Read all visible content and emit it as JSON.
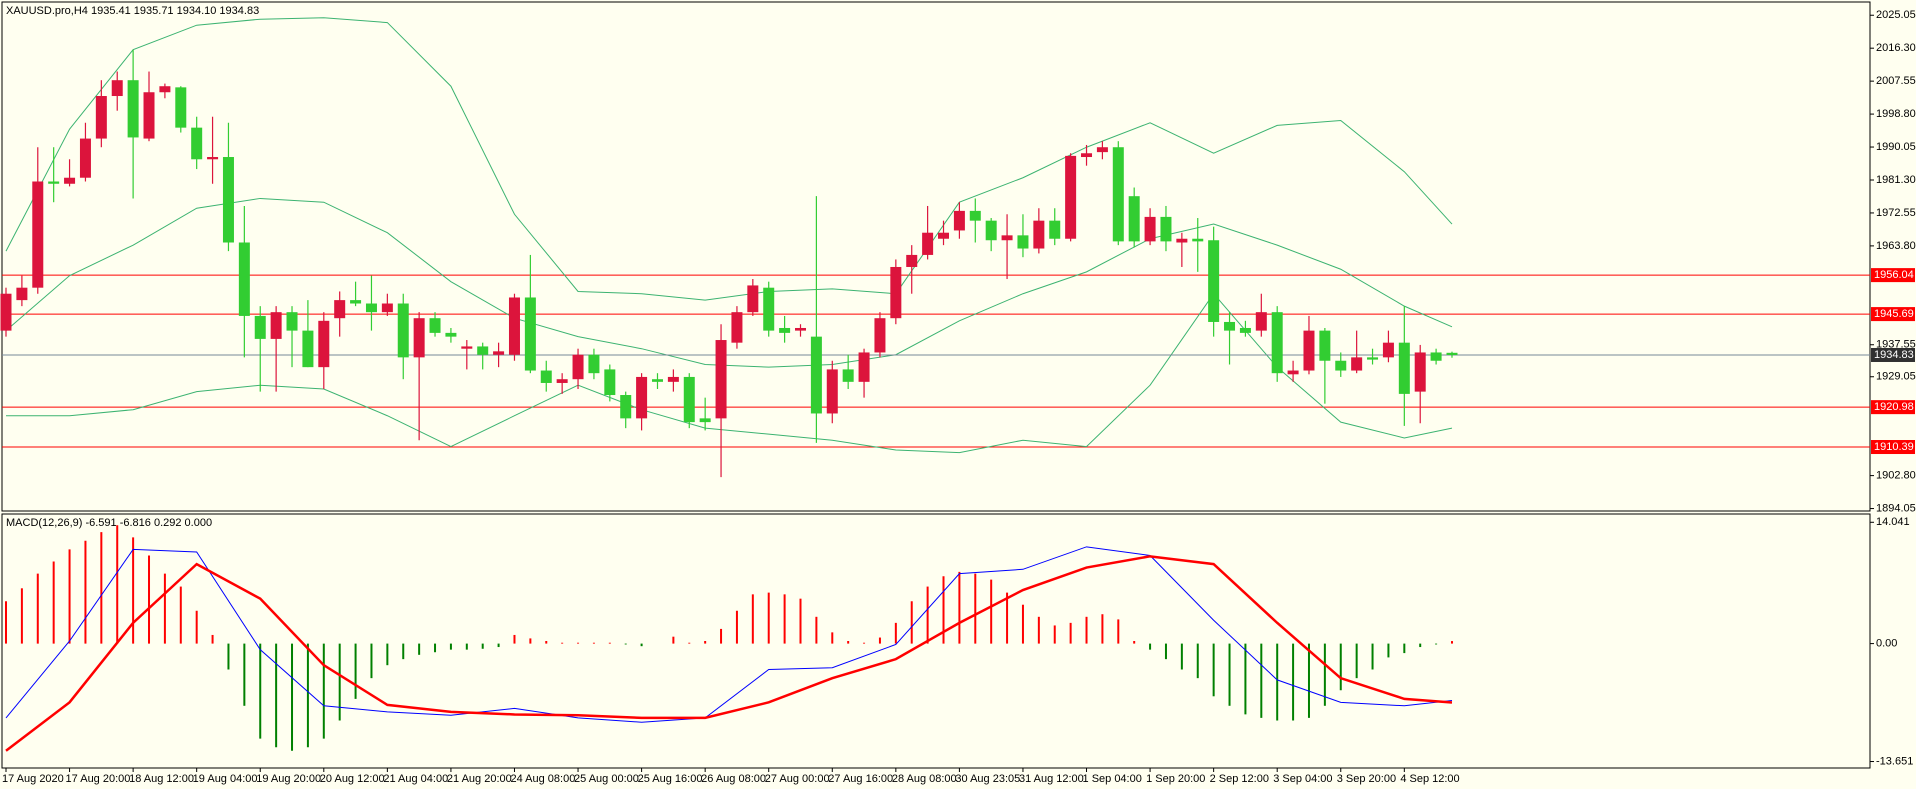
{
  "chart_data": [
    {
      "type": "candlestick",
      "title": "XAUUSD.pro,H4  1935.41 1935.71 1934.10 1934.83",
      "categories": [
        "17 Aug 2020",
        null,
        null,
        null,
        "17 Aug 20:00",
        null,
        null,
        null,
        "18 Aug 12:00",
        null,
        null,
        null,
        "19 Aug 04:00",
        null,
        null,
        null,
        "19 Aug 20:00",
        null,
        null,
        null,
        "20 Aug 12:00",
        null,
        null,
        null,
        "21 Aug 04:00",
        null,
        null,
        null,
        "21 Aug 20:00",
        null,
        null,
        null,
        "24 Aug 08:00",
        null,
        null,
        null,
        "25 Aug 00:00",
        null,
        null,
        null,
        "25 Aug 16:00",
        null,
        null,
        null,
        "26 Aug 08:00",
        null,
        null,
        null,
        "27 Aug 00:00",
        null,
        null,
        null,
        "27 Aug 16:00",
        null,
        null,
        null,
        "28 Aug 08:00",
        null,
        null,
        null,
        "30 Aug 23:05",
        null,
        null,
        null,
        "31 Aug 12:00",
        null,
        null,
        null,
        "1 Sep 04:00",
        null,
        null,
        null,
        "1 Sep 20:00",
        null,
        null,
        null,
        "2 Sep 12:00",
        null,
        null,
        null,
        "3 Sep 04:00",
        null,
        null,
        null,
        "3 Sep 20:00",
        null,
        null,
        null,
        "4 Sep 12:00",
        null,
        null,
        null
      ],
      "open": [
        1941.3,
        1949.4,
        1952.7,
        1980.9,
        1980.3,
        1981.9,
        1992.3,
        2003.6,
        2007.8,
        1992.3,
        2004.6,
        2005.9,
        1995.2,
        1986.8,
        1987.4,
        1964.7,
        1945.2,
        1939.1,
        1946.2,
        1941.3,
        1931.6,
        1944.6,
        1949.4,
        1948.5,
        1946.2,
        1948.5,
        1934.2,
        1944.6,
        1940.7,
        1936.5,
        1937.1,
        1934.9,
        1934.9,
        1950.1,
        1930.7,
        1927.4,
        1928.4,
        1934.9,
        1931.0,
        1924.2,
        1918.0,
        1928.4,
        1927.7,
        1929.0,
        1918.0,
        1918.0,
        1938.1,
        1946.2,
        1952.7,
        1942.0,
        1941.3,
        1939.7,
        1919.3,
        1931.0,
        1927.7,
        1935.5,
        1944.6,
        1958.2,
        1961.4,
        1965.7,
        1967.9,
        1973.1,
        1970.5,
        1965.3,
        1966.6,
        1963.1,
        1970.5,
        1965.7,
        1987.4,
        1988.7,
        1990.0,
        1977.0,
        1965.0,
        1971.5,
        1964.7,
        1965.7,
        1965.3,
        1943.6,
        1942.0,
        1941.3,
        1946.2,
        1929.7,
        1930.7,
        1941.3,
        1933.3,
        1930.7,
        1934.2,
        1934.2,
        1938.1,
        1925.1,
        1935.5,
        1935.41
      ],
      "high": [
        1952.7,
        1955.9,
        1990.0,
        1990.0,
        1986.8,
        1996.5,
        2007.8,
        2010.1,
        2015.9,
        2010.1,
        2006.9,
        2006.2,
        1998.1,
        1998.1,
        1996.5,
        1974.4,
        1947.8,
        1947.8,
        1947.8,
        1949.4,
        1946.2,
        1951.7,
        1954.3,
        1955.9,
        1951.1,
        1951.1,
        1946.2,
        1946.2,
        1942.0,
        1938.8,
        1938.1,
        1938.1,
        1951.1,
        1961.4,
        1933.3,
        1930.0,
        1936.5,
        1936.5,
        1932.3,
        1925.1,
        1930.0,
        1930.0,
        1931.0,
        1930.0,
        1923.5,
        1943.0,
        1947.8,
        1955.0,
        1954.3,
        1945.2,
        1943.0,
        1977.0,
        1933.3,
        1934.9,
        1936.5,
        1946.2,
        1960.2,
        1964.0,
        1974.4,
        1970.5,
        1975.4,
        1976.4,
        1971.2,
        1972.2,
        1972.2,
        1973.8,
        1973.8,
        1988.4,
        1990.6,
        1991.6,
        1991.6,
        1979.3,
        1973.8,
        1974.4,
        1967.3,
        1971.2,
        1968.9,
        1946.2,
        1943.9,
        1951.1,
        1947.8,
        1933.3,
        1945.2,
        1942.0,
        1935.5,
        1941.3,
        1936.5,
        1941.3,
        1947.8,
        1937.5,
        1936.5,
        1935.71
      ],
      "low": [
        1939.7,
        1947.8,
        1951.1,
        1975.4,
        1979.6,
        1980.9,
        1990.0,
        1999.7,
        1976.4,
        1991.6,
        2003.0,
        1993.9,
        1984.2,
        1980.3,
        1962.4,
        1934.2,
        1925.1,
        1925.1,
        1931.6,
        1931.6,
        1925.8,
        1939.7,
        1947.8,
        1941.3,
        1945.2,
        1928.4,
        1912.2,
        1939.7,
        1938.1,
        1931.0,
        1931.0,
        1931.6,
        1933.3,
        1930.0,
        1925.1,
        1924.5,
        1925.8,
        1928.4,
        1922.5,
        1915.4,
        1914.8,
        1925.8,
        1925.1,
        1915.4,
        1914.8,
        1902.4,
        1936.5,
        1945.2,
        1939.7,
        1938.1,
        1939.7,
        1911.5,
        1916.7,
        1925.8,
        1923.5,
        1934.2,
        1943.0,
        1951.1,
        1960.2,
        1964.0,
        1965.7,
        1964.7,
        1962.4,
        1955.0,
        1960.8,
        1961.8,
        1964.0,
        1965.0,
        1985.1,
        1986.8,
        1964.0,
        1963.4,
        1964.0,
        1962.4,
        1958.2,
        1956.9,
        1939.7,
        1932.3,
        1939.7,
        1939.7,
        1927.7,
        1927.7,
        1929.7,
        1921.9,
        1929.0,
        1930.0,
        1932.3,
        1932.9,
        1916.0,
        1916.7,
        1932.3,
        1934.1
      ],
      "close": [
        1951.1,
        1952.7,
        1980.9,
        1980.3,
        1981.9,
        1992.3,
        2003.6,
        2007.8,
        1992.6,
        2004.6,
        2006.2,
        1995.2,
        1986.8,
        1987.4,
        1964.7,
        1945.2,
        1939.1,
        1946.2,
        1941.3,
        1931.6,
        1943.9,
        1949.4,
        1948.5,
        1946.2,
        1948.5,
        1934.2,
        1944.6,
        1940.7,
        1939.7,
        1937.1,
        1934.9,
        1935.8,
        1950.1,
        1930.7,
        1927.4,
        1928.4,
        1934.9,
        1930.0,
        1924.2,
        1918.0,
        1929.0,
        1927.7,
        1929.0,
        1917.0,
        1917.0,
        1938.8,
        1946.2,
        1953.3,
        1941.3,
        1940.7,
        1942.0,
        1919.3,
        1931.0,
        1927.7,
        1935.5,
        1944.6,
        1958.2,
        1961.4,
        1967.3,
        1967.3,
        1973.1,
        1970.5,
        1965.3,
        1966.6,
        1963.1,
        1970.5,
        1965.7,
        1987.7,
        1988.4,
        1990.0,
        1965.0,
        1965.0,
        1971.5,
        1965.0,
        1965.7,
        1965.0,
        1943.6,
        1941.3,
        1940.7,
        1946.2,
        1930.0,
        1930.7,
        1941.3,
        1933.3,
        1930.7,
        1934.2,
        1933.6,
        1938.1,
        1924.5,
        1935.5,
        1933.3,
        1934.83
      ],
      "up_color": "#dc143c",
      "down_color": "#32cd32",
      "bands": [
        {
          "color": "#3cb371",
          "x": [
            0,
            4,
            8,
            12,
            16,
            20,
            24,
            28,
            32,
            36,
            40,
            44,
            48,
            52,
            56,
            60,
            64,
            68,
            72,
            76,
            80,
            84,
            88,
            91
          ],
          "values": [
            1962.4,
            1994.8,
            2015.9,
            2022.4,
            2024.0,
            2024.4,
            2023.1,
            2006.2,
            1972.2,
            1951.7,
            1951.1,
            1949.4,
            1951.7,
            1952.4,
            1951.1,
            1975.4,
            1981.9,
            1990.0,
            1996.5,
            1988.4,
            1995.8,
            1997.1,
            1983.5,
            1969.6
          ]
        },
        {
          "color": "#3cb371",
          "x": [
            0,
            4,
            8,
            12,
            16,
            20,
            24,
            28,
            32,
            36,
            40,
            44,
            48,
            52,
            56,
            60,
            64,
            68,
            72,
            76,
            80,
            84,
            88,
            91
          ],
          "values": [
            1941.3,
            1955.9,
            1964.0,
            1973.8,
            1976.4,
            1975.4,
            1967.3,
            1954.3,
            1944.6,
            1939.7,
            1936.5,
            1932.3,
            1931.6,
            1932.3,
            1934.9,
            1943.9,
            1951.1,
            1956.9,
            1965.7,
            1969.6,
            1964.0,
            1957.6,
            1947.8,
            1942.3
          ]
        },
        {
          "color": "#3cb371",
          "x": [
            0,
            4,
            8,
            12,
            16,
            20,
            24,
            28,
            32,
            36,
            40,
            44,
            48,
            52,
            56,
            60,
            64,
            68,
            72,
            76,
            80,
            84,
            88,
            91
          ],
          "values": [
            1918.7,
            1918.7,
            1920.3,
            1925.1,
            1926.8,
            1925.8,
            1918.7,
            1910.5,
            1918.7,
            1926.8,
            1920.3,
            1915.4,
            1913.8,
            1912.2,
            1909.6,
            1908.9,
            1912.2,
            1910.5,
            1926.8,
            1951.1,
            1931.6,
            1917.0,
            1912.8,
            1915.4
          ]
        }
      ],
      "levels": [
        {
          "value": 1956.04,
          "color": "#ff0000"
        },
        {
          "value": 1945.69,
          "color": "#ff0000"
        },
        {
          "value": 1920.98,
          "color": "#ff0000"
        },
        {
          "value": 1910.39,
          "color": "#ff0000"
        }
      ],
      "last_price_color": "#778899",
      "ylim": [
        1893.4,
        2028.3
      ],
      "yticks": [
        2025.05,
        {
          "value": 2016.3,
          "label": "2016.30"
        },
        2007.55,
        {
          "value": 1998.8,
          "label": "1998.80"
        },
        1990.05,
        {
          "value": 1981.3,
          "label": "1981.30"
        },
        1972.55,
        {
          "value": 1963.8,
          "label": "1963.80"
        },
        1937.55,
        1929.05,
        {
          "value": 1902.8,
          "label": "1902.80"
        },
        1894.05
      ]
    },
    {
      "type": "macd",
      "title": "MACD(12,26,9) -6.591 -6.816 0.292 0.000",
      "values": [
        4.9,
        6.4,
        8.1,
        9.5,
        10.9,
        11.9,
        12.9,
        13.7,
        12.3,
        10.2,
        8.1,
        6.6,
        3.8,
        1.0,
        -3.0,
        -7.2,
        -11.0,
        -12.0,
        -12.4,
        -12.0,
        -11.0,
        -8.9,
        -6.4,
        -4.0,
        -2.5,
        -1.8,
        -1.3,
        -1.0,
        -0.7,
        -0.7,
        -0.6,
        -0.4,
        1.0,
        0.6,
        0.3,
        0.1,
        0.1,
        0.1,
        0.1,
        -0.1,
        -0.3,
        0.0,
        0.8,
        0.1,
        0.3,
        1.7,
        3.8,
        5.7,
        5.9,
        5.7,
        5.2,
        3.1,
        1.3,
        0.3,
        0.1,
        0.7,
        2.4,
        4.9,
        6.6,
        7.8,
        8.3,
        8.1,
        7.4,
        5.9,
        4.5,
        3.1,
        2.1,
        2.4,
        3.1,
        3.4,
        2.8,
        0.3,
        -0.7,
        -1.8,
        -3.0,
        -4.0,
        -6.1,
        -7.2,
        -8.2,
        -8.6,
        -8.9,
        -8.9,
        -8.6,
        -7.2,
        -5.4,
        -4.0,
        -3.0,
        -1.6,
        -1.1,
        -0.4,
        -0.1,
        0.292
      ],
      "positive_color": "#ff0000",
      "negative_color": "#008000",
      "series": [
        {
          "color": "#0000ff",
          "width": 1,
          "x": [
            0,
            4,
            8,
            12,
            16,
            20,
            24,
            28,
            32,
            36,
            40,
            44,
            48,
            52,
            56,
            60,
            64,
            68,
            72,
            76,
            80,
            84,
            88,
            91
          ],
          "values": [
            -8.6,
            0.3,
            10.9,
            10.6,
            -0.7,
            -7.2,
            -7.9,
            -8.3,
            -7.5,
            -8.6,
            -9.1,
            -8.6,
            -3.0,
            -2.8,
            -0.1,
            8.1,
            8.6,
            11.2,
            10.2,
            2.7,
            -4.2,
            -6.8,
            -7.2,
            -6.591
          ]
        },
        {
          "color": "#ff0000",
          "width": 2.5,
          "x": [
            0,
            4,
            8,
            12,
            16,
            20,
            24,
            28,
            32,
            36,
            40,
            44,
            48,
            52,
            56,
            60,
            64,
            68,
            72,
            76,
            80,
            84,
            88,
            91
          ],
          "values": [
            -12.4,
            -6.8,
            2.4,
            9.2,
            5.2,
            -2.5,
            -7.1,
            -7.9,
            -8.2,
            -8.3,
            -8.6,
            -8.6,
            -6.8,
            -4.0,
            -1.8,
            2.4,
            6.2,
            8.8,
            10.1,
            9.2,
            2.4,
            -4.0,
            -6.4,
            -6.816
          ]
        }
      ],
      "ylim": [
        -14.4,
        15.0
      ],
      "yticks": [
        14.041,
        {
          "value": 0,
          "label": "0.00"
        },
        -13.651
      ]
    }
  ]
}
